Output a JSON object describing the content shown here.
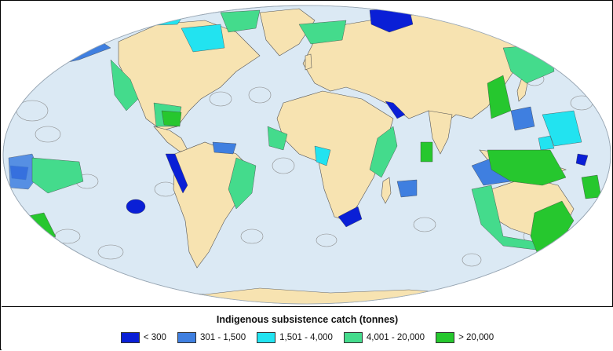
{
  "legend": {
    "title": "Indigenous subsistence catch (tonnes)",
    "items": [
      {
        "label": "< 300",
        "color": "#0a1fd6"
      },
      {
        "label": "301 - 1,500",
        "color": "#3f7fe0"
      },
      {
        "label": "1,501 - 4,000",
        "color": "#22e3f0"
      },
      {
        "label": "4,001 - 20,000",
        "color": "#44db8c"
      },
      {
        "label": "> 20,000",
        "color": "#26c72e"
      }
    ]
  },
  "colors": {
    "ocean": "#dbe9f4",
    "land": "#f7e3b1",
    "eez_outline": "#8a8a8a"
  }
}
